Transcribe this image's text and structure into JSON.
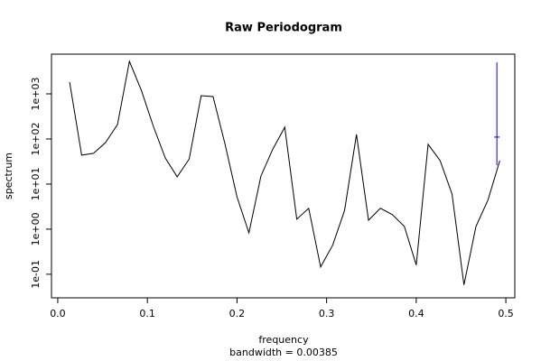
{
  "chart_data": {
    "type": "line",
    "title": "Raw Periodogram",
    "xlabel": "frequency",
    "subtitle": "bandwidth = 0.00385",
    "ylabel": "spectrum",
    "log_y": true,
    "color": "#000000",
    "x": [
      0.0133,
      0.0267,
      0.04,
      0.0533,
      0.0667,
      0.08,
      0.0933,
      0.1067,
      0.12,
      0.1333,
      0.1467,
      0.16,
      0.1733,
      0.1867,
      0.2,
      0.2133,
      0.2267,
      0.24,
      0.2533,
      0.2667,
      0.28,
      0.2933,
      0.3067,
      0.32,
      0.3333,
      0.3467,
      0.36,
      0.3733,
      0.3867,
      0.4,
      0.4133,
      0.4267,
      0.44,
      0.4533,
      0.4667,
      0.48,
      0.4933
    ],
    "values": [
      1820,
      43.7,
      48,
      83,
      209,
      5250,
      1200,
      190,
      38,
      14.5,
      36,
      912,
      870,
      76,
      5.2,
      0.83,
      15,
      60,
      182,
      1.66,
      2.9,
      0.145,
      0.44,
      2.6,
      126,
      1.58,
      2.9,
      2.1,
      1.15,
      0.16,
      76,
      33,
      6,
      0.058,
      1.15,
      4.4,
      33
    ],
    "ci": {
      "x": 0.49,
      "center": 110,
      "lower": 26,
      "upper": 5000,
      "color": "#0000ff"
    },
    "xlim": [
      -0.007,
      0.51
    ],
    "ylim": [
      0.03,
      7600
    ],
    "xticks": [
      {
        "value": 0,
        "label": "0.0"
      },
      0.1,
      0.2,
      0.3,
      0.4,
      0.5
    ],
    "yticks": [
      {
        "value": 0.1,
        "label": "1e-01"
      },
      {
        "value": 1,
        "label": "1e+00"
      },
      {
        "value": 10,
        "label": "1e+01"
      },
      {
        "value": 100,
        "label": "1e+02"
      },
      {
        "value": 1000,
        "label": "1e+03"
      }
    ]
  }
}
